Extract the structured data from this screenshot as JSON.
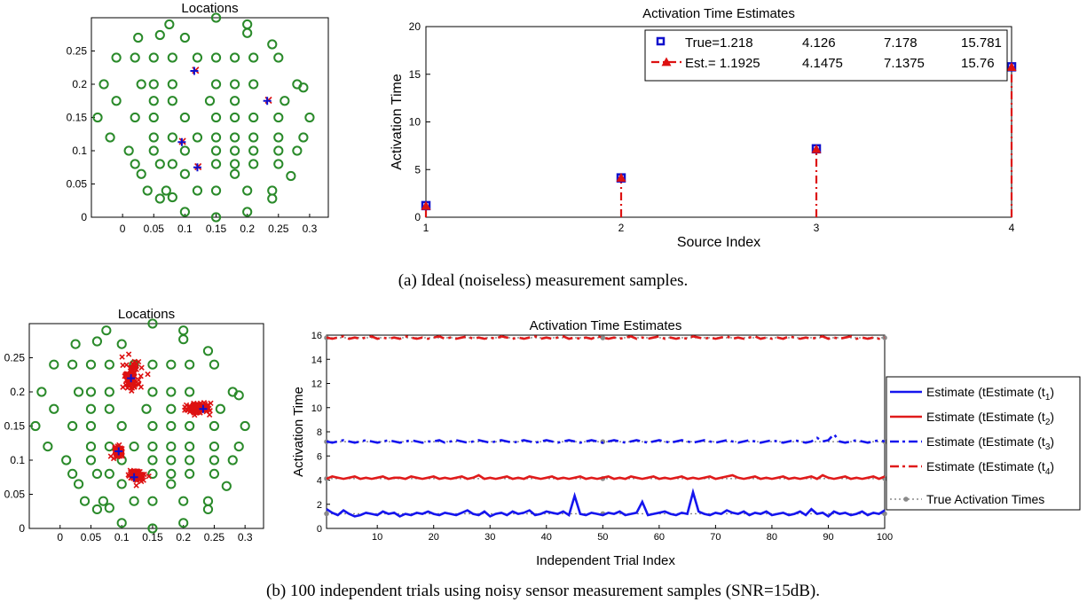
{
  "captions": {
    "a": "(a) Ideal (noiseless) measurement samples.",
    "b": "(b) 100 independent trials using noisy sensor measurement samples (SNR=15dB)."
  },
  "colors": {
    "sensor": "#2a8a2a",
    "true": "#1010cc",
    "est": "#dd1111",
    "true_line": "#8a8a8a",
    "blue_series": "#1515ee",
    "red_series": "#e01a1a"
  },
  "chart_data": [
    {
      "id": "a_locations",
      "type": "scatter",
      "title": "Locations",
      "xlim": [
        -0.05,
        0.33
      ],
      "ylim": [
        0,
        0.3
      ],
      "xticks": [
        "0",
        "0.05",
        "0.1",
        "0.15",
        "0.2",
        "0.25",
        "0.3"
      ],
      "yticks": [
        "0",
        "0.05",
        "0.1",
        "0.15",
        "0.2",
        "0.25"
      ],
      "sensors": [
        [
          0.075,
          0.29
        ],
        [
          0.15,
          0.3
        ],
        [
          0.2,
          0.29
        ],
        [
          0.025,
          0.27
        ],
        [
          0.06,
          0.274
        ],
        [
          0.1,
          0.27
        ],
        [
          0.2,
          0.277
        ],
        [
          0.24,
          0.26
        ],
        [
          -0.01,
          0.24
        ],
        [
          0.02,
          0.24
        ],
        [
          0.05,
          0.24
        ],
        [
          0.08,
          0.24
        ],
        [
          0.12,
          0.24
        ],
        [
          0.15,
          0.24
        ],
        [
          0.18,
          0.24
        ],
        [
          0.21,
          0.24
        ],
        [
          0.25,
          0.24
        ],
        [
          -0.03,
          0.2
        ],
        [
          0.03,
          0.2
        ],
        [
          0.05,
          0.2
        ],
        [
          0.08,
          0.2
        ],
        [
          0.15,
          0.2
        ],
        [
          0.18,
          0.2
        ],
        [
          0.21,
          0.2
        ],
        [
          0.28,
          0.2
        ],
        [
          0.29,
          0.195
        ],
        [
          -0.01,
          0.175
        ],
        [
          0.05,
          0.175
        ],
        [
          0.08,
          0.175
        ],
        [
          0.14,
          0.175
        ],
        [
          0.18,
          0.175
        ],
        [
          0.26,
          0.175
        ],
        [
          -0.04,
          0.15
        ],
        [
          0.02,
          0.15
        ],
        [
          0.05,
          0.15
        ],
        [
          0.1,
          0.15
        ],
        [
          0.15,
          0.15
        ],
        [
          0.18,
          0.15
        ],
        [
          0.21,
          0.15
        ],
        [
          0.25,
          0.15
        ],
        [
          0.3,
          0.15
        ],
        [
          -0.02,
          0.12
        ],
        [
          0.05,
          0.12
        ],
        [
          0.08,
          0.12
        ],
        [
          0.12,
          0.12
        ],
        [
          0.15,
          0.12
        ],
        [
          0.18,
          0.12
        ],
        [
          0.21,
          0.12
        ],
        [
          0.25,
          0.12
        ],
        [
          0.29,
          0.12
        ],
        [
          0.01,
          0.1
        ],
        [
          0.05,
          0.1
        ],
        [
          0.1,
          0.1
        ],
        [
          0.15,
          0.1
        ],
        [
          0.18,
          0.1
        ],
        [
          0.21,
          0.1
        ],
        [
          0.25,
          0.1
        ],
        [
          0.28,
          0.1
        ],
        [
          0.02,
          0.08
        ],
        [
          0.06,
          0.08
        ],
        [
          0.08,
          0.08
        ],
        [
          0.15,
          0.08
        ],
        [
          0.18,
          0.08
        ],
        [
          0.21,
          0.08
        ],
        [
          0.25,
          0.08
        ],
        [
          0.03,
          0.065
        ],
        [
          0.1,
          0.065
        ],
        [
          0.18,
          0.065
        ],
        [
          0.27,
          0.062
        ],
        [
          0.04,
          0.04
        ],
        [
          0.07,
          0.04
        ],
        [
          0.12,
          0.04
        ],
        [
          0.15,
          0.04
        ],
        [
          0.2,
          0.04
        ],
        [
          0.24,
          0.04
        ],
        [
          0.06,
          0.028
        ],
        [
          0.08,
          0.03
        ],
        [
          0.24,
          0.028
        ],
        [
          0.1,
          0.008
        ],
        [
          0.15,
          0
        ],
        [
          0.2,
          0.008
        ]
      ],
      "true_sources": [
        [
          0.115,
          0.22
        ],
        [
          0.232,
          0.175
        ],
        [
          0.095,
          0.113
        ],
        [
          0.12,
          0.075
        ]
      ],
      "est_sources": [
        [
          0.117,
          0.221
        ],
        [
          0.234,
          0.176
        ],
        [
          0.096,
          0.114
        ],
        [
          0.121,
          0.076
        ]
      ]
    },
    {
      "id": "a_activation",
      "type": "bar",
      "title": "Activation Time Estimates",
      "xlabel": "Source Index",
      "ylabel": "Activation Time",
      "xlim": [
        1,
        4
      ],
      "ylim": [
        0,
        20
      ],
      "xticks": [
        "1",
        "2",
        "3",
        "4"
      ],
      "yticks": [
        "0",
        "5",
        "10",
        "15",
        "20"
      ],
      "categories": [
        1,
        2,
        3,
        4
      ],
      "series": [
        {
          "name": "True",
          "values": [
            1.218,
            4.126,
            7.178,
            15.781
          ]
        },
        {
          "name": "Est.",
          "values": [
            1.1925,
            4.1475,
            7.1375,
            15.76
          ]
        }
      ],
      "legend": {
        "placement": "top-right",
        "rows": [
          {
            "label": "True=1.218",
            "v2": "4.126",
            "v3": "7.178",
            "v4": "15.781"
          },
          {
            "label": "Est.= 1.1925",
            "v2": "4.1475",
            "v3": "7.1375",
            "v4": "15.76"
          }
        ]
      }
    },
    {
      "id": "b_locations",
      "type": "scatter",
      "title": "Locations",
      "xlim": [
        -0.05,
        0.33
      ],
      "ylim": [
        0,
        0.3
      ],
      "xticks": [
        "0",
        "0.05",
        "0.1",
        "0.15",
        "0.2",
        "0.25",
        "0.3"
      ],
      "yticks": [
        "0",
        "0.05",
        "0.1",
        "0.15",
        "0.2",
        "0.25"
      ],
      "true_sources": [
        [
          0.115,
          0.22
        ],
        [
          0.232,
          0.175
        ],
        [
          0.095,
          0.113
        ],
        [
          0.12,
          0.075
        ]
      ],
      "est_clusters": [
        {
          "center": [
            0.115,
            0.222
          ],
          "spread": [
            0.014,
            0.02
          ],
          "count": 100
        },
        {
          "center": [
            0.225,
            0.176
          ],
          "spread": [
            0.02,
            0.008
          ],
          "count": 100
        },
        {
          "center": [
            0.095,
            0.113
          ],
          "spread": [
            0.006,
            0.006
          ],
          "count": 100
        },
        {
          "center": [
            0.125,
            0.077
          ],
          "spread": [
            0.012,
            0.007
          ],
          "count": 100
        }
      ]
    },
    {
      "id": "b_activation",
      "type": "line",
      "title": "Activation Time Estimates",
      "xlabel": "Independent Trial Index",
      "ylabel": "Activation Time",
      "xlim": [
        1,
        100
      ],
      "ylim": [
        0,
        16
      ],
      "xticks": [
        "10",
        "20",
        "30",
        "40",
        "50",
        "60",
        "70",
        "80",
        "90",
        "100"
      ],
      "yticks": [
        "0",
        "2",
        "4",
        "6",
        "8",
        "10",
        "12",
        "14",
        "16"
      ],
      "true_values": [
        1.218,
        4.126,
        7.178,
        15.781
      ],
      "legend": {
        "placement": "outside-right",
        "entries": [
          "Estimate (t",
          "Estimate (t",
          "Estimate (t",
          "Estimate (t",
          "True Activation Times"
        ],
        "subscripts": [
          "1",
          "2",
          "3",
          "4",
          ""
        ]
      },
      "series": [
        {
          "name": "Estimate (t1)",
          "values": [
            1.6,
            1.3,
            1.1,
            1.5,
            1.2,
            1.0,
            1.1,
            1.3,
            1.2,
            1.1,
            1.4,
            1.2,
            1.3,
            1.0,
            1.2,
            1.1,
            1.3,
            1.2,
            1.4,
            1.2,
            1.1,
            1.3,
            1.2,
            1.1,
            1.3,
            1.5,
            1.2,
            1.1,
            1.4,
            1.0,
            1.2,
            1.3,
            1.1,
            1.4,
            1.2,
            1.3,
            1.5,
            1.1,
            1.2,
            1.4,
            1.3,
            1.2,
            1.4,
            1.1,
            2.7,
            1.2,
            1.1,
            1.3,
            1.2,
            1.1,
            1.3,
            1.2,
            1.4,
            1.1,
            1.2,
            1.3,
            2.2,
            1.1,
            1.2,
            1.3,
            1.4,
            1.2,
            1.1,
            1.3,
            1.2,
            3.0,
            1.4,
            1.2,
            1.1,
            1.3,
            1.2,
            1.5,
            1.3,
            1.2,
            1.4,
            1.1,
            1.3,
            1.2,
            1.4,
            1.1,
            1.2,
            1.3,
            1.1,
            1.2,
            1.4,
            1.1,
            1.6,
            1.2,
            1.3,
            1.0,
            1.4,
            1.2,
            1.3,
            1.1,
            1.2,
            1.4,
            1.1,
            1.3,
            1.2,
            1.5
          ]
        },
        {
          "name": "Estimate (t2)",
          "values": [
            4.1,
            4.3,
            4.2,
            4.1,
            4.2,
            4.3,
            4.1,
            4.2,
            4.1,
            4.2,
            4.3,
            4.1,
            4.2,
            4.2,
            4.1,
            4.3,
            4.2,
            4.1,
            4.2,
            4.3,
            4.1,
            4.2,
            4.1,
            4.2,
            4.3,
            4.1,
            4.2,
            4.4,
            4.1,
            4.2,
            4.1,
            4.2,
            4.3,
            4.1,
            4.2,
            4.1,
            4.3,
            4.2,
            4.1,
            4.2,
            4.3,
            4.1,
            4.2,
            4.1,
            4.2,
            4.3,
            4.1,
            4.2,
            4.1,
            4.2,
            4.3,
            4.1,
            4.2,
            4.1,
            4.3,
            4.2,
            4.1,
            4.2,
            4.3,
            4.1,
            4.2,
            4.1,
            4.2,
            4.3,
            4.1,
            4.2,
            4.1,
            4.2,
            4.3,
            4.1,
            4.2,
            4.3,
            4.4,
            4.2,
            4.1,
            4.2,
            4.3,
            4.1,
            4.2,
            4.1,
            4.2,
            4.3,
            4.1,
            4.2,
            4.1,
            4.2,
            4.3,
            4.1,
            4.4,
            4.2,
            4.1,
            4.2,
            4.3,
            4.1,
            4.2,
            4.1,
            4.2,
            4.3,
            4.1,
            4.3
          ]
        },
        {
          "name": "Estimate (t3)",
          "values": [
            7.2,
            7.1,
            7.2,
            7.3,
            7.2,
            7.1,
            7.2,
            7.3,
            7.2,
            7.1,
            7.2,
            7.3,
            7.2,
            7.1,
            7.2,
            7.3,
            7.2,
            7.1,
            7.2,
            7.2,
            7.3,
            7.1,
            7.2,
            7.3,
            7.2,
            7.1,
            7.2,
            7.3,
            7.2,
            7.1,
            7.2,
            7.3,
            7.2,
            7.1,
            7.2,
            7.3,
            7.2,
            7.1,
            7.2,
            7.3,
            7.2,
            7.1,
            7.2,
            7.3,
            7.2,
            7.1,
            7.2,
            7.3,
            7.2,
            7.1,
            7.2,
            7.3,
            7.2,
            7.1,
            7.2,
            7.3,
            7.2,
            7.1,
            7.2,
            7.3,
            7.2,
            7.1,
            7.2,
            7.3,
            7.2,
            7.1,
            7.2,
            7.3,
            7.2,
            7.1,
            7.2,
            7.3,
            7.2,
            7.1,
            7.2,
            7.3,
            7.2,
            7.1,
            7.2,
            7.3,
            7.2,
            7.1,
            7.2,
            7.3,
            7.2,
            7.1,
            7.2,
            7.5,
            7.2,
            7.3,
            7.8,
            7.2,
            7.1,
            7.2,
            7.3,
            7.2,
            7.1,
            7.2,
            7.3,
            7.2
          ]
        },
        {
          "name": "Estimate (t4)",
          "values": [
            15.8,
            15.7,
            15.8,
            15.9,
            15.7,
            15.8,
            15.7,
            15.8,
            15.9,
            15.7,
            15.8,
            15.7,
            15.8,
            15.7,
            15.9,
            15.8,
            15.7,
            15.8,
            15.7,
            15.8,
            15.9,
            15.7,
            15.8,
            15.7,
            15.8,
            15.9,
            15.7,
            15.8,
            15.7,
            15.8,
            15.7,
            15.9,
            15.8,
            15.7,
            15.8,
            15.7,
            15.8,
            15.9,
            15.7,
            15.8,
            15.7,
            15.8,
            15.9,
            15.7,
            15.8,
            15.7,
            15.8,
            15.7,
            15.9,
            15.8,
            15.7,
            15.8,
            15.7,
            15.8,
            15.9,
            15.7,
            15.8,
            15.7,
            15.8,
            15.9,
            15.7,
            15.8,
            15.7,
            15.8,
            15.7,
            15.9,
            15.8,
            15.7,
            15.8,
            15.7,
            15.8,
            15.9,
            15.7,
            15.8,
            15.7,
            15.8,
            15.9,
            15.7,
            15.8,
            15.7,
            15.8,
            15.7,
            15.9,
            15.8,
            15.7,
            15.8,
            15.7,
            15.8,
            15.9,
            15.7,
            15.8,
            15.7,
            15.8,
            15.9,
            15.7,
            15.8,
            15.7,
            15.8,
            15.7,
            15.8
          ]
        }
      ]
    }
  ]
}
